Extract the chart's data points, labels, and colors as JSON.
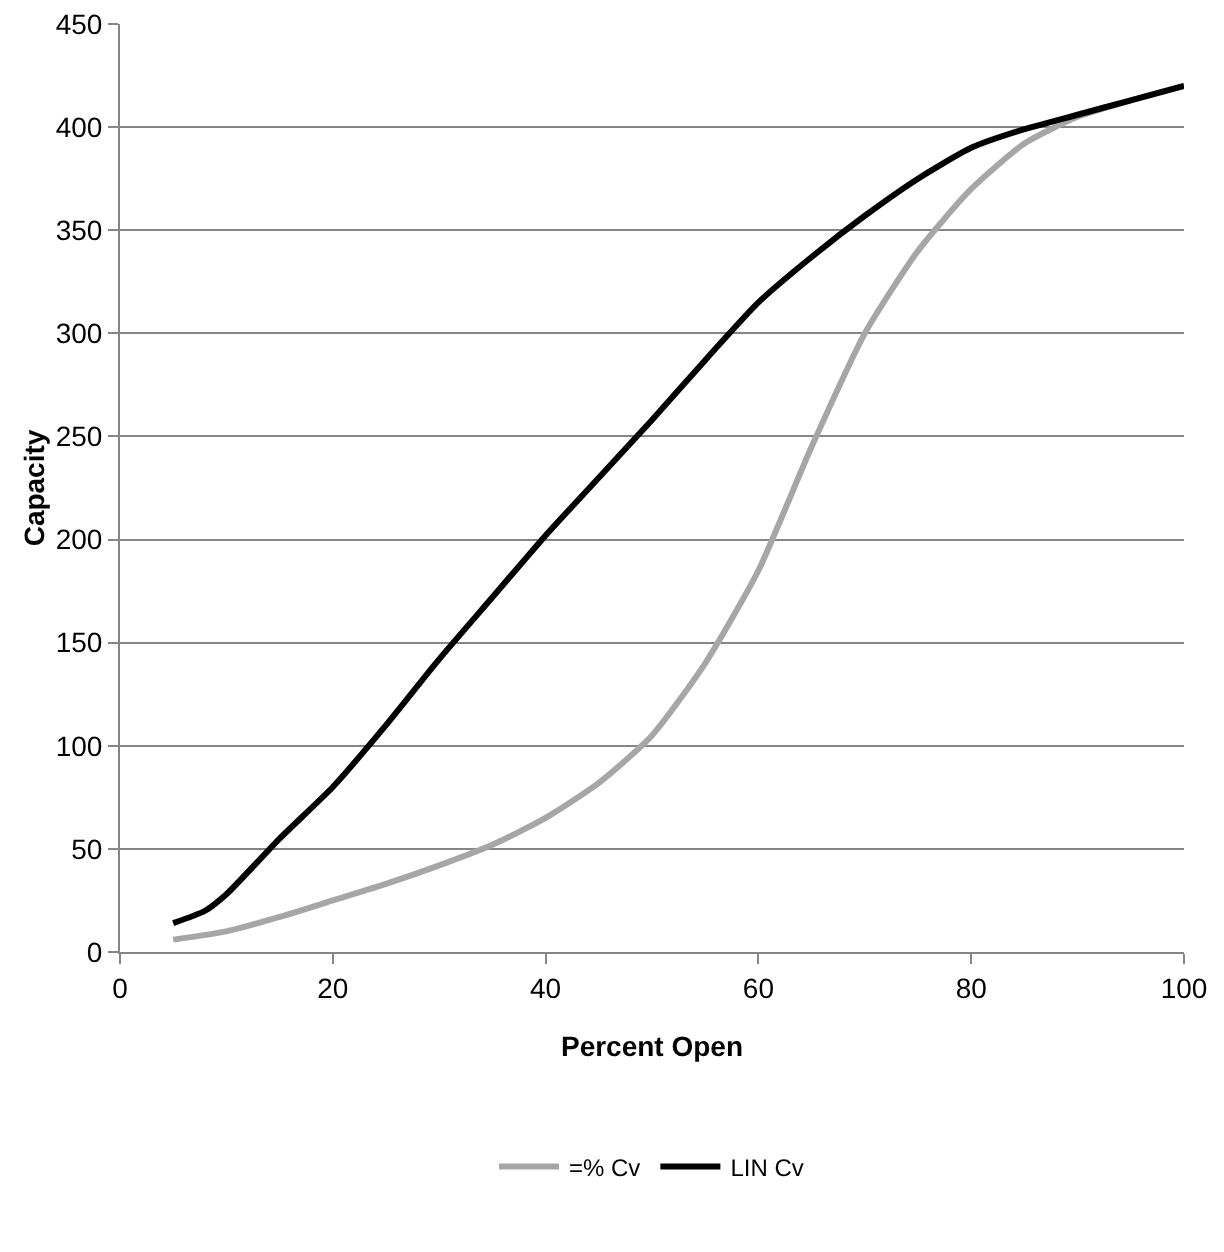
{
  "chart_data": {
    "type": "line",
    "xlabel": "Percent Open",
    "ylabel": "Capacity",
    "xlim": [
      0,
      100
    ],
    "xticks": [
      0,
      20,
      40,
      60,
      80,
      100
    ],
    "ylim": [
      0,
      450
    ],
    "yticks": [
      0,
      50,
      100,
      150,
      200,
      250,
      300,
      350,
      400,
      450
    ],
    "grid": "y",
    "legend": "bottom",
    "marker": "none",
    "line_style": "solid",
    "series": [
      {
        "name": "=% Cv",
        "color": "#a6a6a6",
        "x": [
          5,
          10,
          15,
          20,
          25,
          30,
          35,
          40,
          45,
          50,
          55,
          60,
          65,
          70,
          75,
          80,
          85,
          90,
          95,
          100
        ],
        "values": [
          6,
          10,
          17,
          25,
          33,
          42,
          52,
          65,
          82,
          105,
          140,
          185,
          245,
          300,
          340,
          370,
          392,
          405,
          413,
          420
        ]
      },
      {
        "name": "LIN Cv",
        "color": "#000000",
        "x": [
          5,
          8,
          10,
          15,
          20,
          25,
          30,
          35,
          40,
          45,
          50,
          55,
          60,
          65,
          70,
          75,
          80,
          85,
          90,
          95,
          100
        ],
        "values": [
          14,
          20,
          28,
          55,
          80,
          110,
          142,
          172,
          202,
          230,
          258,
          287,
          315,
          337,
          357,
          375,
          390,
          399,
          406,
          413,
          420
        ]
      }
    ]
  }
}
